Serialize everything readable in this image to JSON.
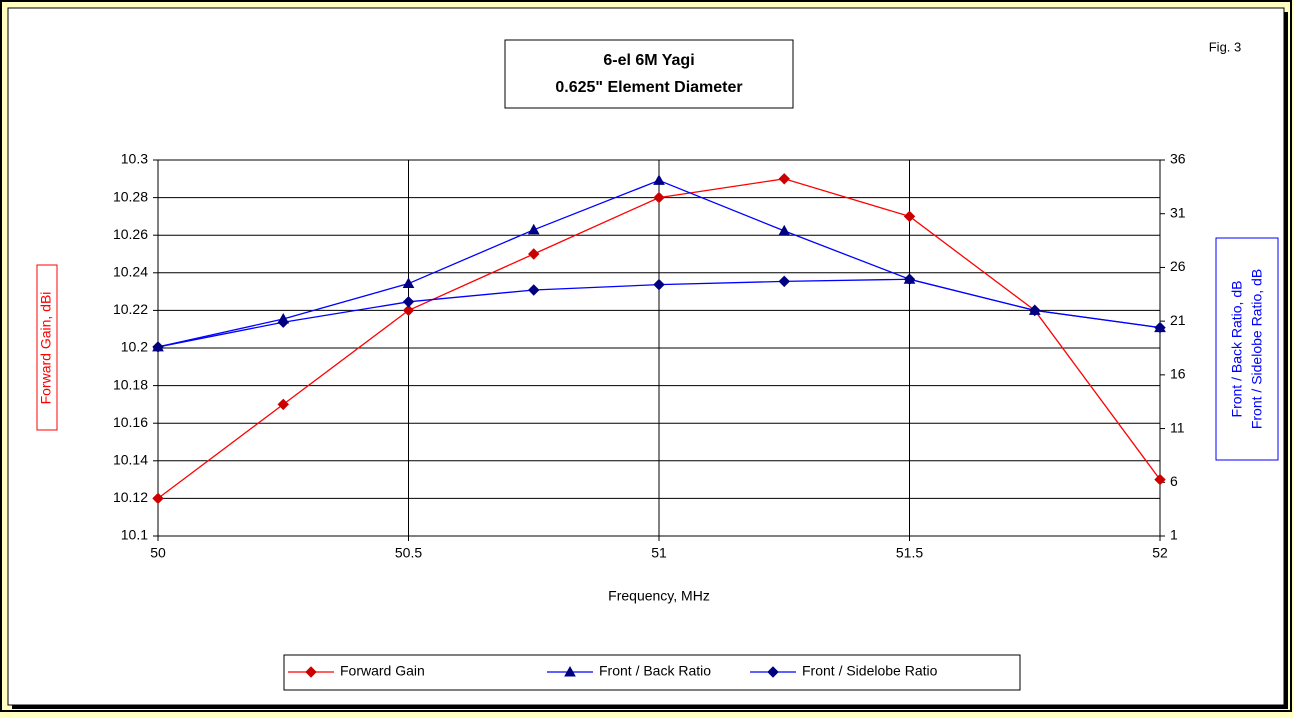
{
  "chart_data": {
    "type": "line",
    "title": [
      "6-el 6M Yagi",
      "0.625\" Element Diameter"
    ],
    "annotation": "Fig. 3",
    "x_label": "Frequency, MHz",
    "y_label": "Forward Gain,  dBi",
    "y2_label": [
      "Front / Back Ratio,  dB",
      "Front / Sidelobe Ratio,  dB"
    ],
    "x": [
      50,
      50.25,
      50.5,
      50.75,
      51,
      51.25,
      51.5,
      51.75,
      52
    ],
    "xlim": [
      50,
      52
    ],
    "xticks": [
      50,
      50.5,
      51,
      51.5,
      52
    ],
    "ylim": [
      10.1,
      10.3
    ],
    "yticks": [
      10.1,
      10.12,
      10.14,
      10.16,
      10.18,
      10.2,
      10.22,
      10.24,
      10.26,
      10.28,
      10.3
    ],
    "y2lim": [
      1,
      36
    ],
    "y2ticks": [
      1,
      6,
      11,
      16,
      21,
      26,
      31,
      36
    ],
    "grid": true,
    "legend": "bottom",
    "series": [
      {
        "name": "Forward Gain",
        "color": "#ff0000",
        "marker_color": "#cc0000",
        "marker": "diamond",
        "values": [
          10.12,
          10.17,
          10.22,
          10.25,
          10.28,
          10.29,
          10.27,
          10.22,
          10.13
        ]
      },
      {
        "name": "Front / Back Ratio",
        "color": "#0000ff",
        "marker_color": "#000080",
        "marker": "triangle",
        "axis": "y2",
        "values": [
          18.6,
          21.2,
          24.5,
          29.5,
          34.1,
          29.4,
          24.9,
          22.0,
          20.4
        ]
      },
      {
        "name": "Front / Sidelobe Ratio",
        "color": "#0000ff",
        "marker_color": "#000080",
        "marker": "diamond",
        "axis": "y2",
        "values": [
          18.6,
          20.9,
          22.8,
          23.9,
          24.4,
          24.7,
          24.9,
          22.0,
          20.4
        ]
      }
    ]
  }
}
